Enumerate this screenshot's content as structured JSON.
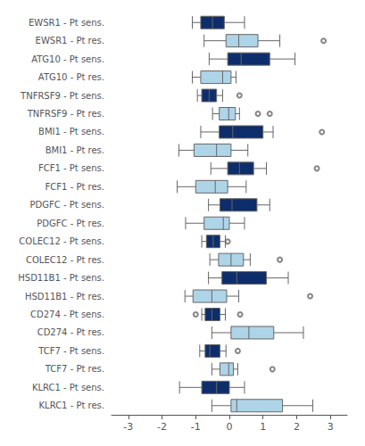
{
  "chart_data": {
    "type": "boxplot",
    "orientation": "horizontal",
    "categories": [
      "EWSR1 - Pt sens.",
      "EWSR1 - Pt res.",
      "ATG10 - Pt sens.",
      "ATG10 - Pt res.",
      "TNFRSF9 - Pt sens.",
      "TNFRSF9 - Pt res.",
      "BMI1 - Pt sens.",
      "BMI1 - Pt res.",
      "FCF1 - Pt sens.",
      "FCF1 - Pt res.",
      "PDGFC - Pt sens.",
      "PDGFC - Pt res.",
      "COLEC12 - Pt sens.",
      "COLEC12 - Pt res.",
      "HSD11B1 - Pt sens.",
      "HSD11B1 - Pt res.",
      "CD274 - Pt sens.",
      "CD274 - Pt res.",
      "TCF7 - Pt sens.",
      "TCF7 - Pt res.",
      "KLRC1 - Pt sens.",
      "KLRC1 - Pt res."
    ],
    "boxes": [
      {
        "q1": -0.85,
        "median": -0.5,
        "q3": -0.15,
        "whislo": -1.1,
        "whishi": 0.45,
        "fliers": []
      },
      {
        "q1": -0.1,
        "median": 0.28,
        "q3": 0.85,
        "whislo": -0.75,
        "whishi": 1.5,
        "fliers": [
          2.8
        ]
      },
      {
        "q1": -0.05,
        "median": 0.35,
        "q3": 1.2,
        "whislo": -0.6,
        "whishi": 1.95,
        "fliers": []
      },
      {
        "q1": -0.85,
        "median": -0.2,
        "q3": 0.05,
        "whislo": -1.1,
        "whishi": 0.2,
        "fliers": []
      },
      {
        "q1": -0.82,
        "median": -0.6,
        "q3": -0.38,
        "whislo": -0.95,
        "whishi": -0.2,
        "fliers": [
          0.3
        ]
      },
      {
        "q1": -0.3,
        "median": -0.02,
        "q3": 0.18,
        "whislo": -0.5,
        "whishi": 0.3,
        "fliers": [
          0.85,
          1.2
        ]
      },
      {
        "q1": -0.3,
        "median": 0.1,
        "q3": 1.0,
        "whislo": -0.85,
        "whishi": 1.3,
        "fliers": [
          2.75
        ]
      },
      {
        "q1": -1.05,
        "median": -0.38,
        "q3": 0.05,
        "whislo": -1.5,
        "whishi": 0.55,
        "fliers": []
      },
      {
        "q1": -0.05,
        "median": 0.3,
        "q3": 0.72,
        "whislo": -0.55,
        "whishi": 1.1,
        "fliers": [
          2.6
        ]
      },
      {
        "q1": -1.0,
        "median": -0.42,
        "q3": -0.05,
        "whislo": -1.55,
        "whishi": 0.5,
        "fliers": []
      },
      {
        "q1": -0.28,
        "median": 0.08,
        "q3": 0.82,
        "whislo": -0.62,
        "whishi": 1.2,
        "fliers": []
      },
      {
        "q1": -0.75,
        "median": -0.18,
        "q3": 0.0,
        "whislo": -1.3,
        "whishi": 0.45,
        "fliers": []
      },
      {
        "q1": -0.68,
        "median": -0.48,
        "q3": -0.28,
        "whislo": -0.82,
        "whishi": -0.12,
        "fliers": [
          -0.05
        ]
      },
      {
        "q1": -0.32,
        "median": 0.05,
        "q3": 0.42,
        "whislo": -0.58,
        "whishi": 0.62,
        "fliers": [
          1.5
        ]
      },
      {
        "q1": -0.22,
        "median": 0.22,
        "q3": 1.1,
        "whislo": -0.62,
        "whishi": 1.75,
        "fliers": []
      },
      {
        "q1": -1.08,
        "median": -0.52,
        "q3": -0.08,
        "whislo": -1.32,
        "whishi": 0.28,
        "fliers": [
          2.4
        ]
      },
      {
        "q1": -0.72,
        "median": -0.52,
        "q3": -0.28,
        "whislo": -0.82,
        "whishi": -0.12,
        "fliers": [
          -1.0,
          0.32
        ]
      },
      {
        "q1": 0.05,
        "median": 0.58,
        "q3": 1.32,
        "whislo": -0.52,
        "whishi": 2.2,
        "fliers": []
      },
      {
        "q1": -0.72,
        "median": -0.58,
        "q3": -0.28,
        "whislo": -0.88,
        "whishi": -0.1,
        "fliers": [
          0.25
        ]
      },
      {
        "q1": -0.28,
        "median": -0.02,
        "q3": 0.12,
        "whislo": -0.52,
        "whishi": 0.25,
        "fliers": [
          1.28
        ]
      },
      {
        "q1": -0.82,
        "median": -0.38,
        "q3": 0.0,
        "whislo": -1.48,
        "whishi": 0.45,
        "fliers": []
      },
      {
        "q1": 0.05,
        "median": 0.22,
        "q3": 1.58,
        "whislo": -0.52,
        "whishi": 2.48,
        "fliers": []
      }
    ],
    "colors": [
      "#0d2d6b",
      "#aed4e8",
      "#0d2d6b",
      "#aed4e8",
      "#0d2d6b",
      "#aed4e8",
      "#0d2d6b",
      "#aed4e8",
      "#0d2d6b",
      "#aed4e8",
      "#0d2d6b",
      "#aed4e8",
      "#0d2d6b",
      "#aed4e8",
      "#0d2d6b",
      "#aed4e8",
      "#0d2d6b",
      "#aed4e8",
      "#0d2d6b",
      "#aed4e8",
      "#0d2d6b",
      "#aed4e8"
    ],
    "xlim": [
      -3.5,
      3.5
    ],
    "xticks": [
      -3,
      -2,
      -1,
      0,
      1,
      2,
      3
    ],
    "grid": false
  }
}
